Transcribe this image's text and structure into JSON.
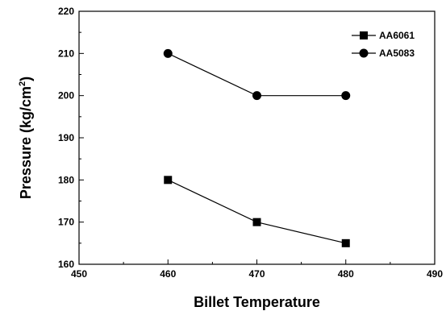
{
  "chart_data": {
    "type": "line",
    "x": [
      460,
      470,
      480
    ],
    "series": [
      {
        "name": "AA6061",
        "marker": "square",
        "values": [
          180,
          170,
          165
        ]
      },
      {
        "name": "AA5083",
        "marker": "circle",
        "values": [
          210,
          200,
          200
        ]
      }
    ],
    "xlabel": "Billet Temperature",
    "ylabel_main": "Pressure (kg/cm",
    "ylabel_sup": "2",
    "ylabel_end": ")",
    "xlim": [
      450,
      490
    ],
    "ylim": [
      160,
      220
    ],
    "xticks": [
      "450",
      "460",
      "470",
      "480",
      "490"
    ],
    "yticks": [
      "160",
      "170",
      "180",
      "190",
      "200",
      "210",
      "220"
    ],
    "grid": false,
    "legend": "top-right",
    "line_color": "#000000"
  }
}
